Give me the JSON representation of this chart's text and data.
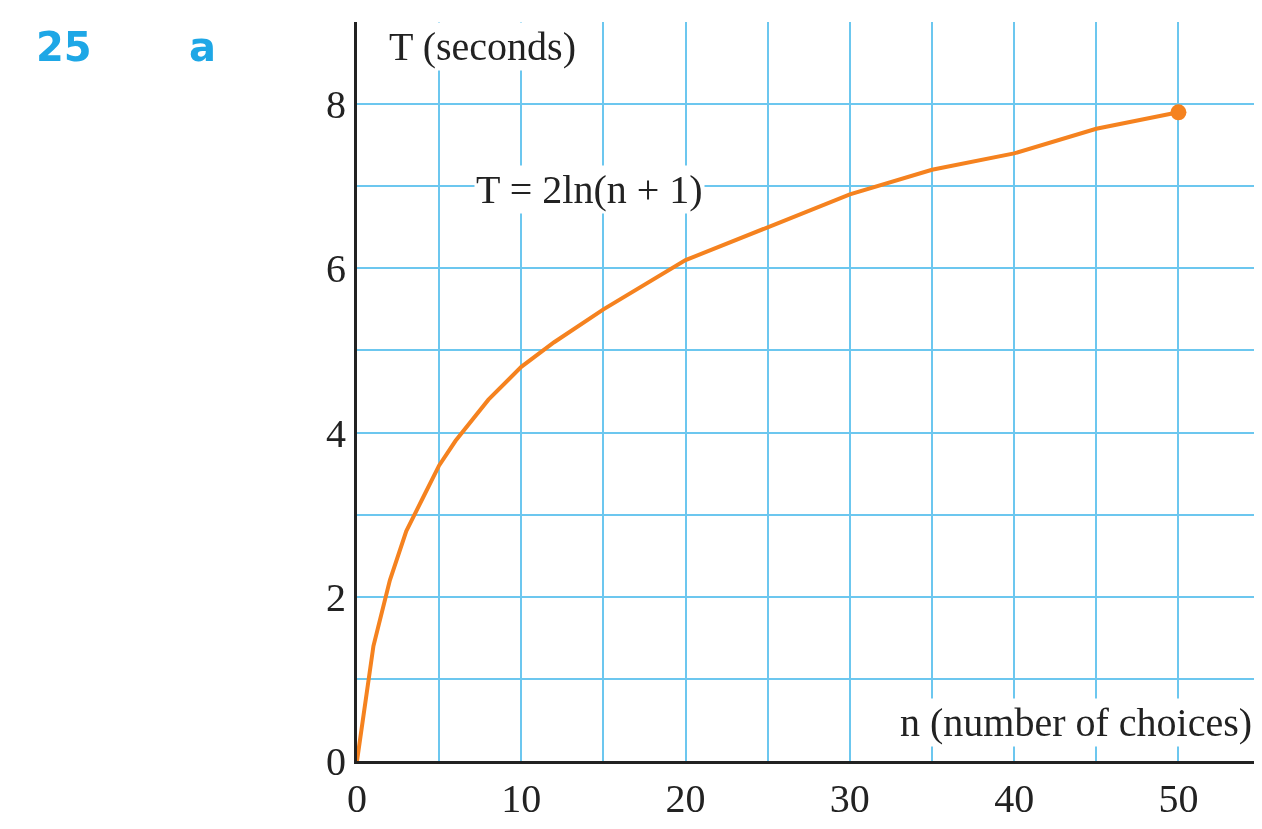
{
  "chart_data": {
    "type": "line",
    "xlabel": "n (number of choices)",
    "ylabel": "T (seconds)",
    "annotations": [
      "25",
      "a",
      "T = 2ln(n + 1)"
    ],
    "series": [
      {
        "color": "#f5821f",
        "marker": "none",
        "x": [
          0,
          1,
          2,
          3,
          4,
          5,
          6,
          8,
          10,
          12,
          15,
          20,
          25,
          30,
          35,
          40,
          45,
          50
        ],
        "values": [
          0,
          1.4,
          2.2,
          2.8,
          3.2,
          3.6,
          3.9,
          4.4,
          4.8,
          5.1,
          5.5,
          6.1,
          6.5,
          6.9,
          7.2,
          7.4,
          7.7,
          7.9
        ]
      },
      {
        "type": "scatter",
        "color": "#f5821f",
        "marker": "circle",
        "x": [
          50
        ],
        "values": [
          7.9
        ]
      }
    ],
    "xlim": [
      0,
      54.6
    ],
    "ylim": [
      0,
      9.0
    ],
    "xticks": [
      0,
      {
        "value": 5,
        "label": null
      },
      10,
      {
        "value": 15,
        "label": null
      },
      20,
      {
        "value": 25,
        "label": null
      },
      30,
      {
        "value": 35,
        "label": null
      },
      40,
      {
        "value": 45,
        "label": null
      },
      50
    ],
    "yticks": [
      0,
      {
        "value": 1,
        "label": null
      },
      2,
      {
        "value": 3,
        "label": null
      },
      4,
      {
        "value": 5,
        "label": null
      },
      6,
      {
        "value": 7,
        "label": null
      },
      8
    ],
    "grid": true
  }
}
